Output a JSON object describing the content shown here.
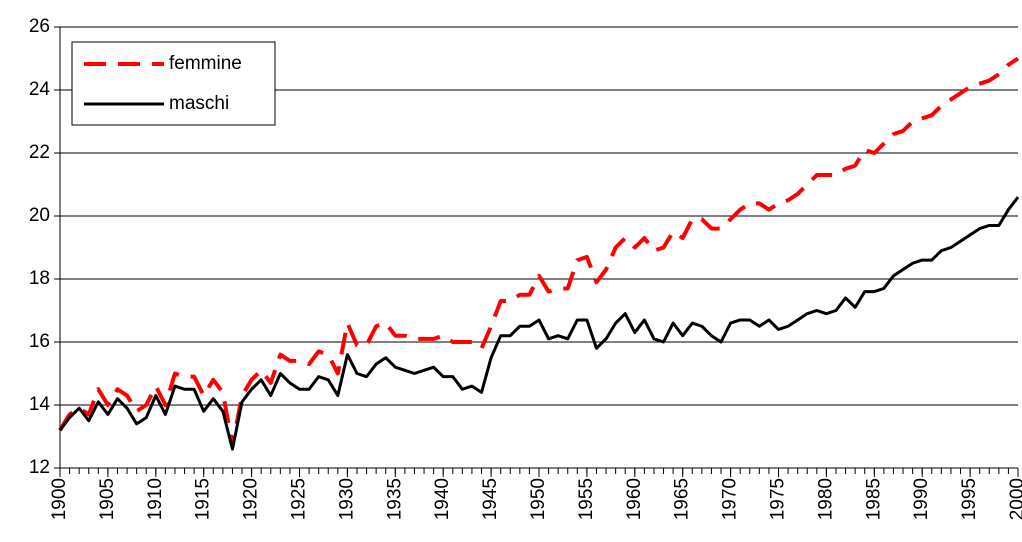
{
  "chart_data": {
    "type": "line",
    "x": [
      1900,
      1901,
      1902,
      1903,
      1904,
      1905,
      1906,
      1907,
      1908,
      1909,
      1910,
      1911,
      1912,
      1913,
      1914,
      1915,
      1916,
      1917,
      1918,
      1919,
      1920,
      1921,
      1922,
      1923,
      1924,
      1925,
      1926,
      1927,
      1928,
      1929,
      1930,
      1931,
      1932,
      1933,
      1934,
      1935,
      1936,
      1937,
      1938,
      1939,
      1940,
      1941,
      1942,
      1943,
      1944,
      1945,
      1946,
      1947,
      1948,
      1949,
      1950,
      1951,
      1952,
      1953,
      1954,
      1955,
      1956,
      1957,
      1958,
      1959,
      1960,
      1961,
      1962,
      1963,
      1964,
      1965,
      1966,
      1967,
      1968,
      1969,
      1970,
      1971,
      1972,
      1973,
      1974,
      1975,
      1976,
      1977,
      1978,
      1979,
      1980,
      1981,
      1982,
      1983,
      1984,
      1985,
      1986,
      1987,
      1988,
      1989,
      1990,
      1991,
      1992,
      1993,
      1994,
      1995,
      1996,
      1997,
      1998,
      1999,
      2000
    ],
    "series": [
      {
        "name": "femmine",
        "color": "#ff0000",
        "line_style": "dashed",
        "values": [
          13.2,
          13.7,
          13.9,
          13.7,
          14.5,
          14.0,
          14.5,
          14.3,
          13.8,
          14.0,
          14.6,
          14.0,
          15.0,
          14.9,
          14.9,
          14.3,
          14.8,
          14.4,
          12.7,
          14.3,
          14.8,
          15.1,
          14.7,
          15.6,
          15.4,
          15.4,
          15.3,
          15.7,
          15.6,
          15.0,
          16.6,
          15.9,
          15.9,
          16.5,
          16.6,
          16.2,
          16.2,
          16.1,
          16.1,
          16.1,
          16.2,
          16.0,
          16.0,
          16.0,
          15.8,
          16.5,
          17.3,
          17.3,
          17.5,
          17.5,
          18.1,
          17.6,
          17.7,
          17.7,
          18.6,
          18.7,
          17.9,
          18.3,
          19.0,
          19.3,
          19.0,
          19.3,
          18.9,
          19.0,
          19.5,
          19.3,
          19.9,
          19.9,
          19.6,
          19.6,
          19.9,
          20.2,
          20.4,
          20.4,
          20.2,
          20.4,
          20.5,
          20.7,
          21.0,
          21.3,
          21.3,
          21.3,
          21.5,
          21.6,
          22.1,
          22.0,
          22.3,
          22.6,
          22.7,
          23.0,
          23.1,
          23.2,
          23.5,
          23.7,
          23.9,
          24.1,
          24.2,
          24.3,
          24.5,
          24.8,
          25.0
        ]
      },
      {
        "name": "maschi",
        "color": "#000000",
        "line_style": "solid",
        "values": [
          13.2,
          13.6,
          13.9,
          13.5,
          14.1,
          13.7,
          14.2,
          13.9,
          13.4,
          13.6,
          14.3,
          13.7,
          14.6,
          14.5,
          14.5,
          13.8,
          14.2,
          13.8,
          12.6,
          14.1,
          14.5,
          14.8,
          14.3,
          15.0,
          14.7,
          14.5,
          14.5,
          14.9,
          14.8,
          14.3,
          15.6,
          15.0,
          14.9,
          15.3,
          15.5,
          15.2,
          15.1,
          15.0,
          15.1,
          15.2,
          14.9,
          14.9,
          14.5,
          14.6,
          14.4,
          15.5,
          16.2,
          16.2,
          16.5,
          16.5,
          16.7,
          16.1,
          16.2,
          16.1,
          16.7,
          16.7,
          15.8,
          16.1,
          16.6,
          16.9,
          16.3,
          16.7,
          16.1,
          16.0,
          16.6,
          16.2,
          16.6,
          16.5,
          16.2,
          16.0,
          16.6,
          16.7,
          16.7,
          16.5,
          16.7,
          16.4,
          16.5,
          16.7,
          16.9,
          17.0,
          16.9,
          17.0,
          17.4,
          17.1,
          17.6,
          17.6,
          17.7,
          18.1,
          18.3,
          18.5,
          18.6,
          18.6,
          18.9,
          19.0,
          19.2,
          19.4,
          19.6,
          19.7,
          19.7,
          20.2,
          20.6
        ]
      }
    ],
    "xlim": [
      1900,
      2000
    ],
    "xticks": [
      1900,
      1905,
      1910,
      1915,
      1920,
      1925,
      1930,
      1935,
      1940,
      1945,
      1950,
      1955,
      1960,
      1965,
      1970,
      1975,
      1980,
      1985,
      1990,
      1995,
      2000
    ],
    "ylim": [
      12,
      26
    ],
    "yticks": [
      12,
      14,
      16,
      18,
      20,
      22,
      24,
      26
    ],
    "grid": true,
    "legend": "top-left"
  }
}
